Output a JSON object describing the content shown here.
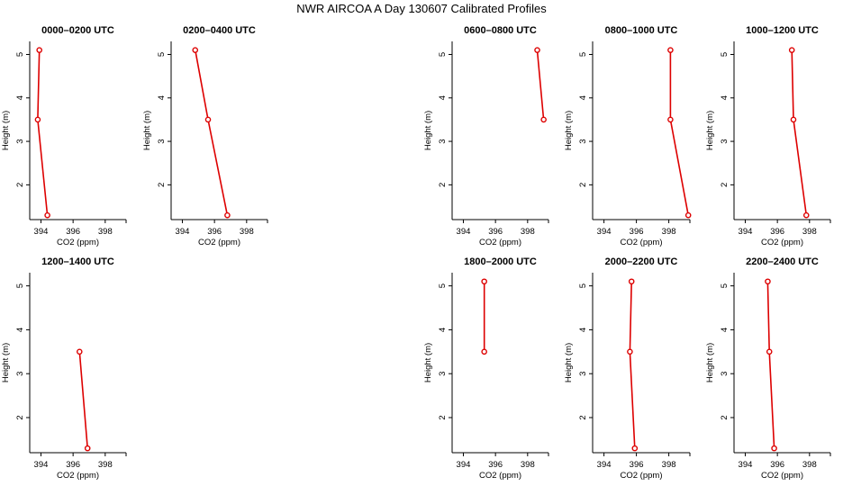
{
  "figure": {
    "title": "NWR AIRCOA A  Day 130607  Calibrated Profiles"
  },
  "style": {
    "line_color": "#dd0000",
    "marker": "open-circle",
    "axis_color": "#000000"
  },
  "chart_data": [
    {
      "type": "line",
      "title": "0000–0200 UTC",
      "xlabel": "CO2 (ppm)",
      "ylabel": "Height (m)",
      "xlim": [
        393.3,
        399.3
      ],
      "ylim": [
        1.2,
        5.3
      ],
      "xticks": [
        "394",
        "396",
        "398"
      ],
      "yticks": [
        "2",
        "3",
        "4",
        "5"
      ],
      "x": [
        393.9,
        393.8,
        394.4
      ],
      "y": [
        5.1,
        3.5,
        1.3
      ]
    },
    {
      "type": "line",
      "title": "0200–0400 UTC",
      "xlabel": "CO2 (ppm)",
      "ylabel": "Height (m)",
      "xlim": [
        393.3,
        399.3
      ],
      "ylim": [
        1.2,
        5.3
      ],
      "xticks": [
        "394",
        "396",
        "398"
      ],
      "yticks": [
        "2",
        "3",
        "4",
        "5"
      ],
      "x": [
        394.8,
        395.6,
        396.8
      ],
      "y": [
        5.1,
        3.5,
        1.3
      ]
    },
    {
      "type": "line",
      "title": "0600–0800 UTC",
      "xlabel": "CO2 (ppm)",
      "ylabel": "Height (m)",
      "xlim": [
        393.3,
        399.3
      ],
      "ylim": [
        1.2,
        5.3
      ],
      "xticks": [
        "394",
        "396",
        "398"
      ],
      "yticks": [
        "2",
        "3",
        "4",
        "5"
      ],
      "x": [
        398.6,
        399.0
      ],
      "y": [
        5.1,
        3.5
      ]
    },
    {
      "type": "line",
      "title": "0800–1000 UTC",
      "xlabel": "CO2 (ppm)",
      "ylabel": "Height (m)",
      "xlim": [
        393.3,
        399.3
      ],
      "ylim": [
        1.2,
        5.3
      ],
      "xticks": [
        "394",
        "396",
        "398"
      ],
      "yticks": [
        "2",
        "3",
        "4",
        "5"
      ],
      "x": [
        398.1,
        398.1,
        399.2
      ],
      "y": [
        5.1,
        3.5,
        1.3
      ]
    },
    {
      "type": "line",
      "title": "1000–1200 UTC",
      "xlabel": "CO2 (ppm)",
      "ylabel": "Height (m)",
      "xlim": [
        393.3,
        399.3
      ],
      "ylim": [
        1.2,
        5.3
      ],
      "xticks": [
        "394",
        "396",
        "398"
      ],
      "yticks": [
        "2",
        "3",
        "4",
        "5"
      ],
      "x": [
        396.9,
        397.0,
        397.8
      ],
      "y": [
        5.1,
        3.5,
        1.3
      ]
    },
    {
      "type": "line",
      "title": "1200–1400 UTC",
      "xlabel": "CO2 (ppm)",
      "ylabel": "Height (m)",
      "xlim": [
        393.3,
        399.3
      ],
      "ylim": [
        1.2,
        5.3
      ],
      "xticks": [
        "394",
        "396",
        "398"
      ],
      "yticks": [
        "2",
        "3",
        "4",
        "5"
      ],
      "x": [
        396.4,
        396.9
      ],
      "y": [
        3.5,
        1.3
      ]
    },
    {
      "type": "line",
      "title": "1800–2000 UTC",
      "xlabel": "CO2 (ppm)",
      "ylabel": "Height (m)",
      "xlim": [
        393.3,
        399.3
      ],
      "ylim": [
        1.2,
        5.3
      ],
      "xticks": [
        "394",
        "396",
        "398"
      ],
      "yticks": [
        "2",
        "3",
        "4",
        "5"
      ],
      "x": [
        395.3,
        395.3
      ],
      "y": [
        5.1,
        3.5
      ]
    },
    {
      "type": "line",
      "title": "2000–2200 UTC",
      "xlabel": "CO2 (ppm)",
      "ylabel": "Height (m)",
      "xlim": [
        393.3,
        399.3
      ],
      "ylim": [
        1.2,
        5.3
      ],
      "xticks": [
        "394",
        "396",
        "398"
      ],
      "yticks": [
        "2",
        "3",
        "4",
        "5"
      ],
      "x": [
        395.7,
        395.6,
        395.9
      ],
      "y": [
        5.1,
        3.5,
        1.3
      ]
    },
    {
      "type": "line",
      "title": "2200–2400 UTC",
      "xlabel": "CO2 (ppm)",
      "ylabel": "Height (m)",
      "xlim": [
        393.3,
        399.3
      ],
      "ylim": [
        1.2,
        5.3
      ],
      "xticks": [
        "394",
        "396",
        "398"
      ],
      "yticks": [
        "2",
        "3",
        "4",
        "5"
      ],
      "x": [
        395.4,
        395.5,
        395.8
      ],
      "y": [
        5.1,
        3.5,
        1.3
      ]
    }
  ]
}
